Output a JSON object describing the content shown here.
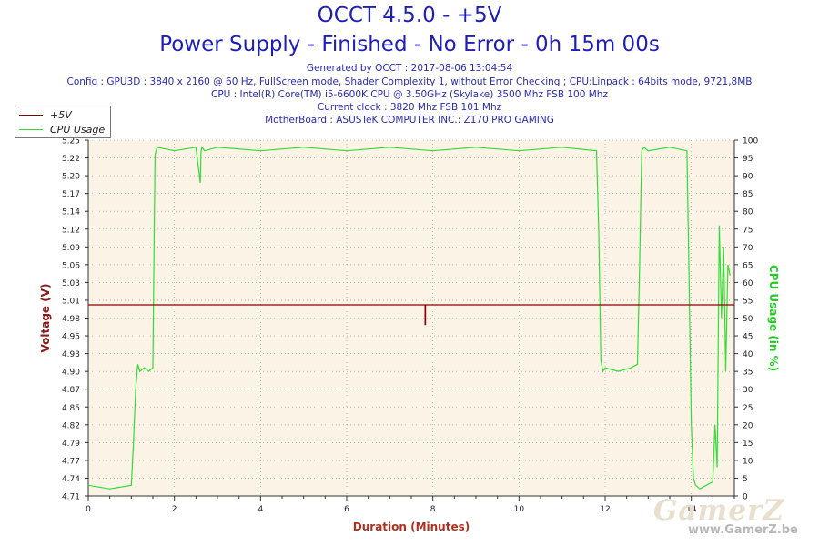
{
  "header": {
    "title_main": "OCCT 4.5.0 - +5V",
    "title_sub": "Power Supply - Finished - No Error - 0h 15m 00s",
    "generated": "Generated by OCCT : 2017-08-06 13:04:54",
    "config": "Config : GPU3D : 3840 x 2160 @ 60 Hz, FullScreen mode, Shader Complexity 1, without Error Checking ; CPU:Linpack : 64bits mode, 9721,8MB",
    "cpu": "CPU : Intel(R) Core(TM) i5-6600K CPU @ 3.50GHz (Skylake) 3500 Mhz FSB 100 Mhz",
    "clock": "Current clock : 3820 Mhz FSB 101 Mhz",
    "motherboard": "MotherBoard : ASUSTeK COMPUTER INC.: Z170 PRO GAMING"
  },
  "watermark": {
    "logo": "GamerZ",
    "url": "www.GamerZ.be"
  },
  "colors": {
    "voltage": "#8b0000",
    "cpu": "#33dd33",
    "plot_bg": "#faf3e6",
    "title": "#1f1fb8",
    "axis_left": "#8b1a1a",
    "axis_right": "#22cc22",
    "xlabel": "#b03020"
  },
  "chart_data": {
    "type": "line",
    "xlabel": "Duration (Minutes)",
    "ylabel_left": "Voltage (V)",
    "ylabel_right": "CPU Usage (in %)",
    "xlim": [
      0,
      15
    ],
    "ylim_left": [
      4.71,
      5.25
    ],
    "ylim_right": [
      0,
      100
    ],
    "x_ticks": [
      "0",
      "2",
      "4",
      "6",
      "8",
      "10",
      "12",
      "14"
    ],
    "y_left_ticks": [
      "4.71",
      "4.74",
      "4.77",
      "4.79",
      "4.82",
      "4.85",
      "4.87",
      "4.90",
      "4.93",
      "4.95",
      "4.98",
      "5.01",
      "5.03",
      "5.06",
      "5.09",
      "5.12",
      "5.14",
      "5.17",
      "5.20",
      "5.22",
      "5.25"
    ],
    "y_right_ticks": [
      "0",
      "5",
      "10",
      "15",
      "20",
      "25",
      "30",
      "35",
      "40",
      "45",
      "50",
      "55",
      "60",
      "65",
      "70",
      "75",
      "80",
      "85",
      "90",
      "95",
      "100"
    ],
    "grid": true,
    "legend_position": "top-left",
    "series": [
      {
        "name": "+5V",
        "axis": "left",
        "x": [
          0,
          7.82,
          7.82,
          7.83,
          7.83,
          15
        ],
        "values": [
          5.0,
          5.0,
          4.97,
          4.97,
          5.0,
          5.0
        ]
      },
      {
        "name": "CPU Usage",
        "axis": "right",
        "x": [
          0,
          0.5,
          1.0,
          1.05,
          1.1,
          1.15,
          1.2,
          1.3,
          1.4,
          1.5,
          1.52,
          1.55,
          1.6,
          2.0,
          2.5,
          2.6,
          2.62,
          2.64,
          2.7,
          3.0,
          4.0,
          5.0,
          6.0,
          7.0,
          8.0,
          9.0,
          10.0,
          11.0,
          11.8,
          11.85,
          11.9,
          11.95,
          12.0,
          12.3,
          12.6,
          12.75,
          12.8,
          12.85,
          12.9,
          13.0,
          13.5,
          13.9,
          13.95,
          14.0,
          14.05,
          14.1,
          14.2,
          14.35,
          14.5,
          14.55,
          14.6,
          14.65,
          14.7,
          14.75,
          14.8,
          14.85,
          14.9
        ],
        "values": [
          3,
          2,
          3,
          15,
          30,
          37,
          35,
          36,
          35,
          36,
          60,
          96,
          98,
          97,
          98,
          88,
          97,
          98,
          97,
          98,
          97,
          98,
          97,
          98,
          97,
          98,
          97,
          98,
          97,
          75,
          38,
          35,
          36,
          35,
          36,
          37,
          65,
          97,
          98,
          97,
          98,
          97,
          60,
          20,
          5,
          3,
          2,
          3,
          4,
          20,
          8,
          76,
          50,
          70,
          35,
          65,
          62
        ]
      }
    ]
  }
}
